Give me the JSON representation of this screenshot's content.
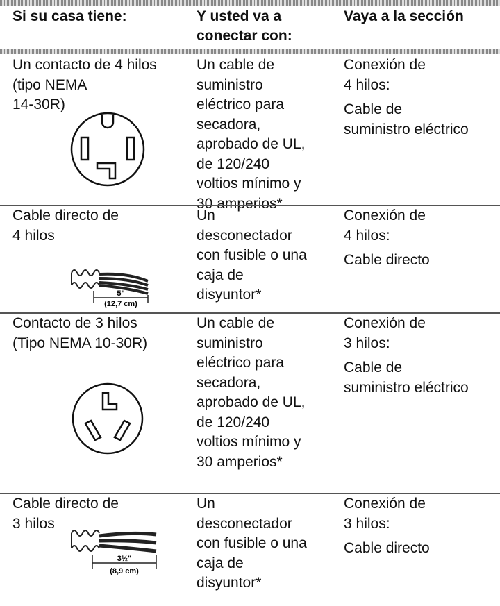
{
  "header": {
    "columns": [
      [
        "Si su casa tiene:"
      ],
      [
        "Y usted va a",
        "conectar con:"
      ],
      [
        "Vaya a la sección"
      ]
    ]
  },
  "rows": [
    {
      "home": [
        "Un contacto de 4 hilos",
        "(tipo NEMA",
        "14-30R)"
      ],
      "connect": [
        "Un cable de",
        "suministro",
        "eléctrico para",
        "secadora,",
        "aprobado de UL,",
        "de 120/240",
        "voltios mínimo y",
        "30 amperios*"
      ],
      "section": [
        [
          "Conexión de",
          "4 hilos:"
        ],
        [
          "Cable de",
          "suministro eléctrico"
        ]
      ]
    },
    {
      "home": [
        "Cable directo de",
        "4 hilos"
      ],
      "connect": [
        "Un",
        "desconectador",
        "con fusible o una",
        "caja de",
        "disyuntor*"
      ],
      "section": [
        [
          "Conexión de",
          "4 hilos:"
        ],
        [
          "Cable directo"
        ]
      ],
      "dims": [
        "5\"",
        "(12,7 cm)"
      ]
    },
    {
      "home": [
        "Contacto de 3 hilos",
        "(Tipo NEMA 10-30R)"
      ],
      "connect": [
        "Un cable de",
        "suministro",
        "eléctrico para",
        "secadora,",
        "aprobado de UL,",
        "de 120/240",
        "voltios mínimo y",
        "30 amperios*"
      ],
      "section": [
        [
          "Conexión de",
          "3 hilos:"
        ],
        [
          "Cable de",
          "suministro eléctrico"
        ]
      ]
    },
    {
      "home": [
        "Cable directo de",
        "3 hilos"
      ],
      "connect": [
        "Un",
        "desconectador",
        "con fusible o una",
        "caja de",
        "disyuntor*"
      ],
      "section": [
        [
          "Conexión de",
          "3 hilos:"
        ],
        [
          "Cable directo"
        ]
      ],
      "dims": [
        "3½\"",
        "(8,9 cm)"
      ]
    }
  ]
}
